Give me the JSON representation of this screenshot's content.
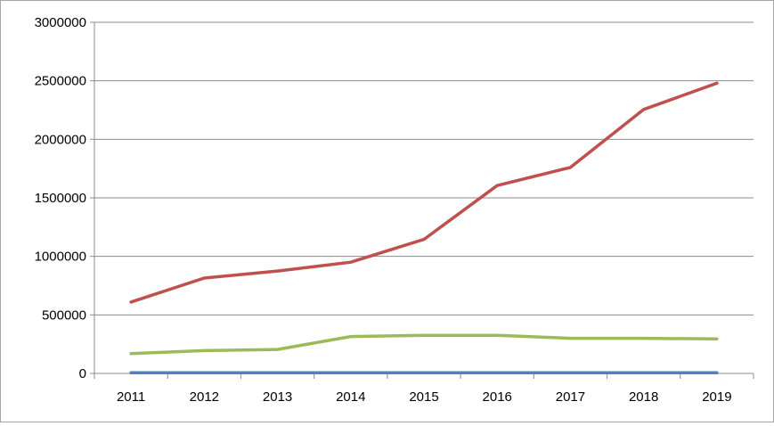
{
  "chart_data": {
    "type": "line",
    "categories": [
      "2011",
      "2012",
      "2013",
      "2014",
      "2015",
      "2016",
      "2017",
      "2018",
      "2019"
    ],
    "series": [
      {
        "color": "#4f81bd",
        "values": [
          5000,
          5000,
          5000,
          5000,
          5000,
          5000,
          5000,
          5000,
          5000
        ]
      },
      {
        "color": "#c0504d",
        "values": [
          610000,
          815000,
          875000,
          950000,
          1145000,
          1605000,
          1760000,
          2255000,
          2480000
        ]
      },
      {
        "color": "#9bbb59",
        "values": [
          170000,
          195000,
          205000,
          315000,
          325000,
          325000,
          300000,
          300000,
          295000
        ]
      }
    ],
    "y_ticks": [
      "0",
      "500000",
      "1000000",
      "1500000",
      "2000000",
      "2500000",
      "3000000"
    ],
    "ylim": [
      0,
      3000000
    ],
    "grid": true,
    "legend": "none",
    "title": "",
    "xlabel": "",
    "ylabel": ""
  }
}
